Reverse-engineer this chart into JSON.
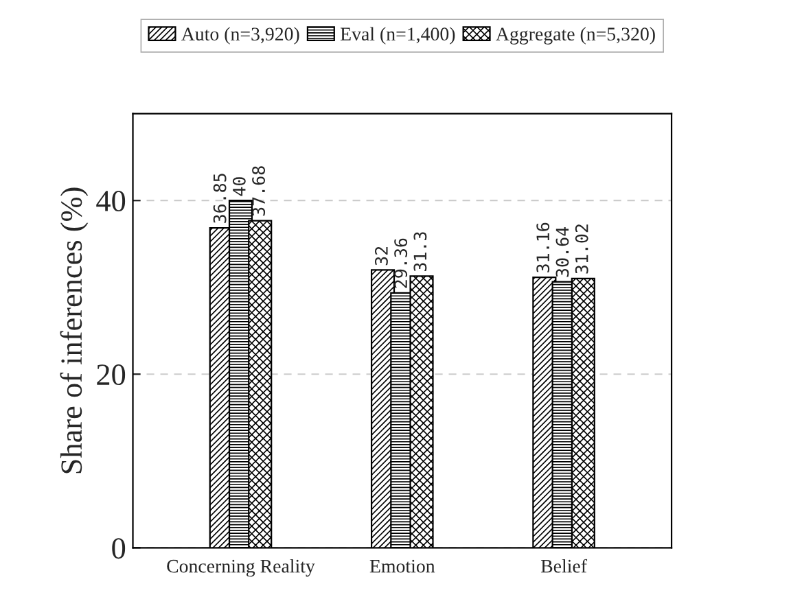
{
  "chart_data": {
    "type": "bar",
    "ylabel": "Share of inferences (%)",
    "categories": [
      "Concerning Reality",
      "Emotion",
      "Belief"
    ],
    "series": [
      {
        "name": "Auto (n=3,920)",
        "color": "#000000",
        "values": [
          36.85,
          32,
          31.16
        ]
      },
      {
        "name": "Eval (n=1,400)",
        "color": "#000000",
        "values": [
          40,
          29.36,
          30.64
        ]
      },
      {
        "name": "Aggregate (n=5,320)",
        "color": "#000000",
        "values": [
          37.68,
          31.3,
          31.02
        ]
      }
    ],
    "ylim": [
      0,
      50
    ],
    "yticks": [
      0,
      20,
      40
    ],
    "grid": "y",
    "legend": "top",
    "data_labels": true
  }
}
